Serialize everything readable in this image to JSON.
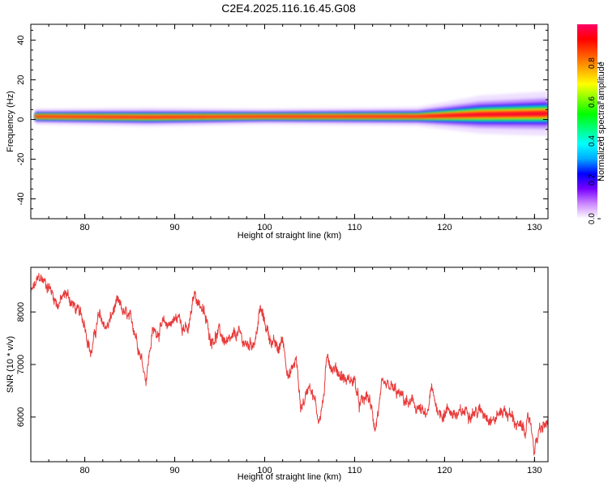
{
  "title": "C2E4.2025.116.16.45.G08",
  "colors": {
    "snr_line": "#e83a3a",
    "axis": "#000000",
    "background": "#ffffff"
  },
  "chart_data": [
    {
      "type": "heatmap",
      "xlabel": "Height of straight line (km)",
      "ylabel": "Frequency (Hz)",
      "xlim": [
        74,
        131.5
      ],
      "ylim": [
        -50,
        48
      ],
      "xticks": [
        80,
        90,
        100,
        110,
        120,
        130
      ],
      "yticks": [
        -40,
        -20,
        0,
        20,
        40
      ],
      "colorbar": {
        "label": "Normalized spectral amplitude",
        "range": [
          0,
          1
        ],
        "ticks": [
          0.0,
          0.2,
          0.4,
          0.6,
          0.8
        ],
        "colormap": "rainbow",
        "colors": [
          "#ffffff",
          "#cc88ff",
          "#7700ff",
          "#0000ff",
          "#00aaff",
          "#00ffff",
          "#00ff80",
          "#00ff00",
          "#80ff00",
          "#ffff00",
          "#ffaa00",
          "#ff5500",
          "#ff0000",
          "#ff0066"
        ]
      },
      "signal": {
        "description_points": [
          {
            "x": 74.5,
            "center_freq": 1.5,
            "width": 2.5
          },
          {
            "x": 87,
            "center_freq": 1.2,
            "width": 3
          },
          {
            "x": 100,
            "center_freq": 1.5,
            "width": 2.5
          },
          {
            "x": 117,
            "center_freq": 1.5,
            "width": 3
          },
          {
            "x": 124,
            "center_freq": 2.5,
            "width": 6
          },
          {
            "x": 131.5,
            "center_freq": 3,
            "width": 7
          }
        ]
      }
    },
    {
      "type": "line",
      "xlabel": "Height of straight line (km)",
      "ylabel": "SNR (10 * v/v)",
      "xlim": [
        74,
        131.5
      ],
      "ylim": [
        5150,
        8850
      ],
      "xticks": [
        80,
        90,
        100,
        110,
        120,
        130
      ],
      "yticks": [
        6000,
        7000,
        8000
      ],
      "series": [
        {
          "x": [
            74,
            75,
            76,
            77,
            78,
            79,
            80,
            80.7,
            81.5,
            82.5,
            83.5,
            84.5,
            85.5,
            86.3,
            86.8,
            87.5,
            88.5,
            89.5,
            90.5,
            91.5,
            92.2,
            93,
            94,
            95,
            96,
            97,
            98,
            99,
            99.5,
            100.5,
            101.5,
            102,
            102.7,
            103.5,
            104,
            104.5,
            105,
            105.5,
            106,
            106.5,
            107,
            107.5,
            108,
            109,
            110,
            110.5,
            111.5,
            112.3,
            113,
            114,
            115,
            116,
            117,
            118,
            118.5,
            119.5,
            120.5,
            121.5,
            122.5,
            123.5,
            124.5,
            125.5,
            126.5,
            127.5,
            128.5,
            129,
            129.5,
            130,
            130.5,
            131,
            131.5
          ],
          "y": [
            8350,
            8650,
            8500,
            8150,
            8350,
            8050,
            7800,
            7200,
            7900,
            7700,
            8150,
            7950,
            7700,
            7150,
            6750,
            7600,
            7700,
            7800,
            7900,
            7600,
            8350,
            8100,
            7500,
            7600,
            7350,
            7600,
            7350,
            7500,
            8050,
            7550,
            7250,
            7500,
            6750,
            7100,
            6200,
            6350,
            6700,
            6350,
            5950,
            6300,
            7200,
            6950,
            6900,
            6700,
            6700,
            6200,
            6400,
            5800,
            6500,
            6550,
            6400,
            6250,
            6200,
            5950,
            6500,
            6050,
            6150,
            6000,
            6150,
            6100,
            6100,
            5950,
            6150,
            6000,
            5750,
            5800,
            5950,
            5400,
            5700,
            5800,
            5900
          ]
        }
      ]
    }
  ]
}
